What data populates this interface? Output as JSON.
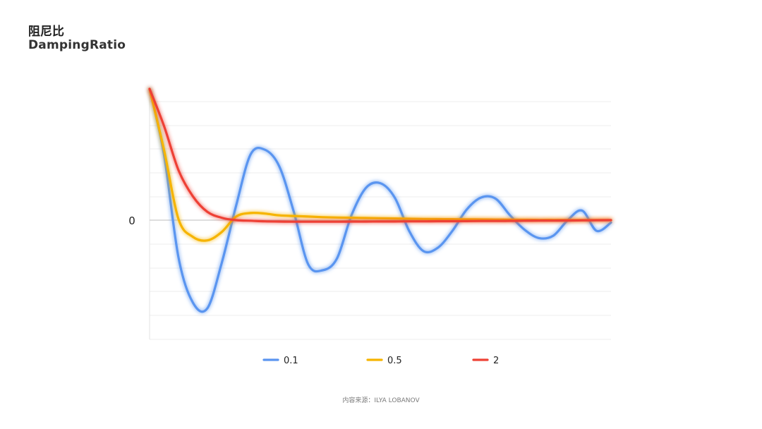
{
  "header": {
    "title_cn": "阻尼比",
    "title_en": "DampingRatio"
  },
  "footer": {
    "source": "内容来源：ILYA LOBANOV"
  },
  "chart_data": {
    "type": "line",
    "title": "阻尼比 DampingRatio",
    "xlabel": "",
    "ylabel": "",
    "y_tick_labels": [
      "0"
    ],
    "ylim": [
      -1.0,
      1.1
    ],
    "xlim": [
      0,
      8
    ],
    "grid": true,
    "legend_position": "bottom",
    "x": [
      0,
      0.25,
      0.5,
      0.75,
      1,
      1.25,
      1.5,
      1.75,
      2,
      2.25,
      2.5,
      2.75,
      3,
      3.25,
      3.5,
      3.75,
      4,
      4.25,
      4.5,
      4.75,
      5,
      5.25,
      5.5,
      5.75,
      6,
      6.25,
      6.5,
      6.75,
      7,
      7.25,
      7.5,
      7.75,
      8
    ],
    "series": [
      {
        "name": "0.1",
        "color": "#5a95f0",
        "values": [
          1.1,
          0.55,
          -0.31,
          -0.69,
          -0.74,
          -0.36,
          0.12,
          0.55,
          0.59,
          0.45,
          0.07,
          -0.37,
          -0.42,
          -0.32,
          0.04,
          0.27,
          0.31,
          0.19,
          -0.09,
          -0.26,
          -0.23,
          -0.09,
          0.09,
          0.19,
          0.18,
          0.04,
          -0.08,
          -0.15,
          -0.13,
          0.0,
          0.08,
          -0.09,
          -0.02
        ]
      },
      {
        "name": "0.5",
        "color": "#f6b400",
        "values": [
          1.1,
          0.59,
          0.01,
          -0.14,
          -0.17,
          -0.1,
          0.03,
          0.06,
          0.055,
          0.04,
          0.035,
          0.03,
          0.025,
          0.022,
          0.02,
          0.018,
          0.016,
          0.014,
          0.012,
          0.01,
          0.009,
          0.008,
          0.007,
          0.006,
          0.005,
          0.004,
          0.003,
          0.002,
          0.002,
          0.001,
          0.001,
          0.001,
          0.0
        ]
      },
      {
        "name": "2",
        "color": "#ee4135",
        "values": [
          1.1,
          0.79,
          0.42,
          0.2,
          0.07,
          0.02,
          0.0,
          -0.005,
          -0.01,
          -0.012,
          -0.013,
          -0.013,
          -0.013,
          -0.013,
          -0.012,
          -0.012,
          -0.011,
          -0.011,
          -0.01,
          -0.01,
          -0.009,
          -0.009,
          -0.008,
          -0.007,
          -0.007,
          -0.006,
          -0.005,
          -0.004,
          -0.004,
          -0.003,
          -0.002,
          -0.001,
          0.0
        ]
      }
    ]
  }
}
